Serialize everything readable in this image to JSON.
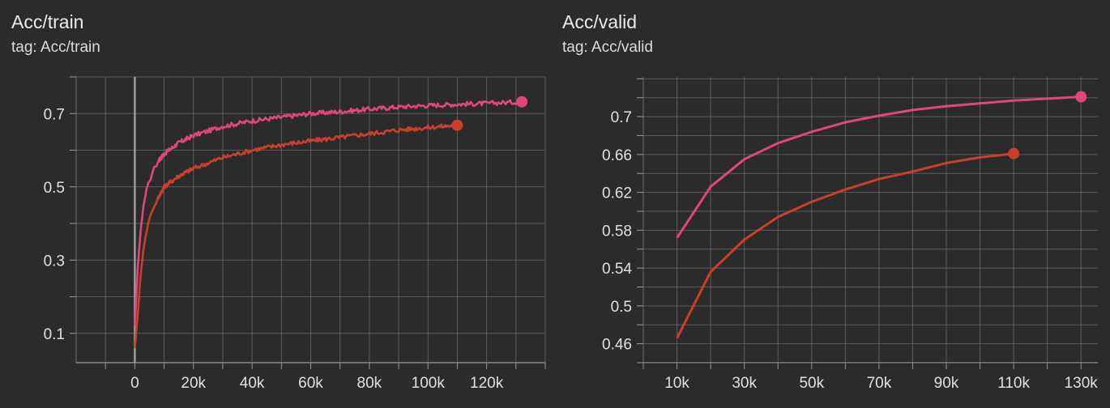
{
  "charts": [
    {
      "title": "Acc/train",
      "tag": "tag: Acc/train"
    },
    {
      "title": "Acc/valid",
      "tag": "tag: Acc/valid"
    }
  ],
  "colors": {
    "background": "#2b2b2b",
    "grid": "#6a6a6a",
    "series_pink": "#e0467c",
    "series_orange": "#c9402a"
  },
  "chart_data": [
    {
      "type": "line",
      "title": "Acc/train",
      "xlabel": "",
      "ylabel": "",
      "xlim": [
        -20000,
        140000
      ],
      "ylim": [
        0.02,
        0.8
      ],
      "x_ticks": [
        0,
        20000,
        40000,
        60000,
        80000,
        100000,
        120000
      ],
      "x_tick_labels": [
        "0",
        "20k",
        "40k",
        "60k",
        "80k",
        "100k",
        "120k"
      ],
      "y_ticks": [
        0.1,
        0.3,
        0.5,
        0.7
      ],
      "y_tick_labels": [
        "0.1",
        "0.3",
        "0.5",
        "0.7"
      ],
      "grid": true,
      "series": [
        {
          "color": "#e0467c",
          "x": [
            0,
            1000,
            2000,
            3000,
            4000,
            6000,
            8000,
            10000,
            15000,
            20000,
            30000,
            40000,
            50000,
            60000,
            70000,
            80000,
            90000,
            100000,
            110000,
            120000,
            132000
          ],
          "y": [
            0.12,
            0.28,
            0.38,
            0.45,
            0.49,
            0.54,
            0.57,
            0.59,
            0.62,
            0.64,
            0.665,
            0.68,
            0.69,
            0.7,
            0.705,
            0.712,
            0.718,
            0.722,
            0.725,
            0.728,
            0.732
          ]
        },
        {
          "color": "#c9402a",
          "x": [
            0,
            1000,
            2000,
            3000,
            4000,
            6000,
            8000,
            10000,
            15000,
            20000,
            30000,
            40000,
            50000,
            60000,
            70000,
            80000,
            90000,
            100000,
            110000
          ],
          "y": [
            0.06,
            0.15,
            0.26,
            0.33,
            0.38,
            0.44,
            0.47,
            0.5,
            0.53,
            0.55,
            0.58,
            0.6,
            0.615,
            0.625,
            0.635,
            0.645,
            0.655,
            0.662,
            0.668
          ]
        }
      ]
    },
    {
      "type": "line",
      "title": "Acc/valid",
      "xlabel": "",
      "ylabel": "",
      "xlim": [
        0,
        135000
      ],
      "ylim": [
        0.44,
        0.742
      ],
      "x_ticks": [
        10000,
        30000,
        50000,
        70000,
        90000,
        110000,
        130000
      ],
      "x_tick_labels": [
        "10k",
        "30k",
        "50k",
        "70k",
        "90k",
        "110k",
        "130k"
      ],
      "y_ticks": [
        0.46,
        0.5,
        0.54,
        0.58,
        0.62,
        0.66,
        0.7
      ],
      "y_tick_labels": [
        "0.46",
        "0.5",
        "0.54",
        "0.58",
        "0.62",
        "0.66",
        "0.7"
      ],
      "grid": true,
      "series": [
        {
          "color": "#e0467c",
          "x": [
            10000,
            20000,
            30000,
            40000,
            50000,
            60000,
            70000,
            80000,
            90000,
            100000,
            110000,
            120000,
            130000
          ],
          "y": [
            0.572,
            0.626,
            0.655,
            0.672,
            0.684,
            0.694,
            0.701,
            0.707,
            0.711,
            0.714,
            0.717,
            0.719,
            0.721
          ]
        },
        {
          "color": "#c9402a",
          "x": [
            10000,
            20000,
            30000,
            40000,
            50000,
            60000,
            70000,
            80000,
            90000,
            100000,
            110000
          ],
          "y": [
            0.466,
            0.536,
            0.57,
            0.594,
            0.61,
            0.623,
            0.634,
            0.642,
            0.651,
            0.657,
            0.661
          ]
        }
      ]
    }
  ]
}
